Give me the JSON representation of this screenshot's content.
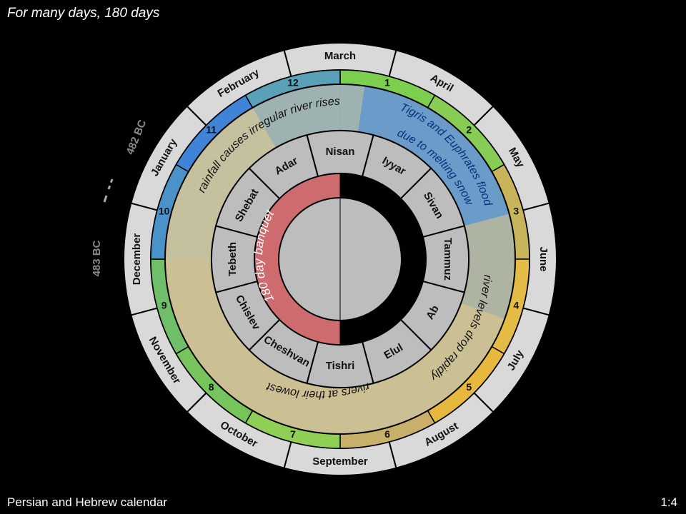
{
  "title": "For many days, 180 days",
  "footer": {
    "caption": "Persian and Hebrew calendar",
    "page": "1:4"
  },
  "months_outer": [
    "March",
    "April",
    "May",
    "June",
    "July",
    "August",
    "September",
    "October",
    "November",
    "December",
    "January",
    "February"
  ],
  "month_numbers": [
    "1",
    "2",
    "3",
    "4",
    "5",
    "6",
    "7",
    "8",
    "9",
    "10",
    "11",
    "12"
  ],
  "hebrew_months": [
    "Nisan",
    "Iyyar",
    "Sivan",
    "Tammuz",
    "Ab",
    "Elul",
    "Tishri",
    "Cheshvan",
    "Chislev",
    "Tebeth",
    "Shebat",
    "Adar"
  ],
  "season_labels": {
    "flood": [
      "Tigris and Euphrates flood",
      "due to melting snow"
    ],
    "drop": "river levels drop rapidly",
    "lowest": "rivers at their lowest",
    "rainfall": "rainfall causes irregular river rises"
  },
  "banquet_label": "180 day banquet",
  "year_labels": {
    "later": "482 BC",
    "earlier": "483 BC"
  },
  "colors": {
    "background": "#000000",
    "outer_ring": "#d9d9d9",
    "banquet": "#cd6b6f",
    "center": "#c0c0c0",
    "flood": "#4a8fd6",
    "dry": "#e2b83c",
    "green": "#7ccf4e",
    "earth": "#cbbf94"
  }
}
